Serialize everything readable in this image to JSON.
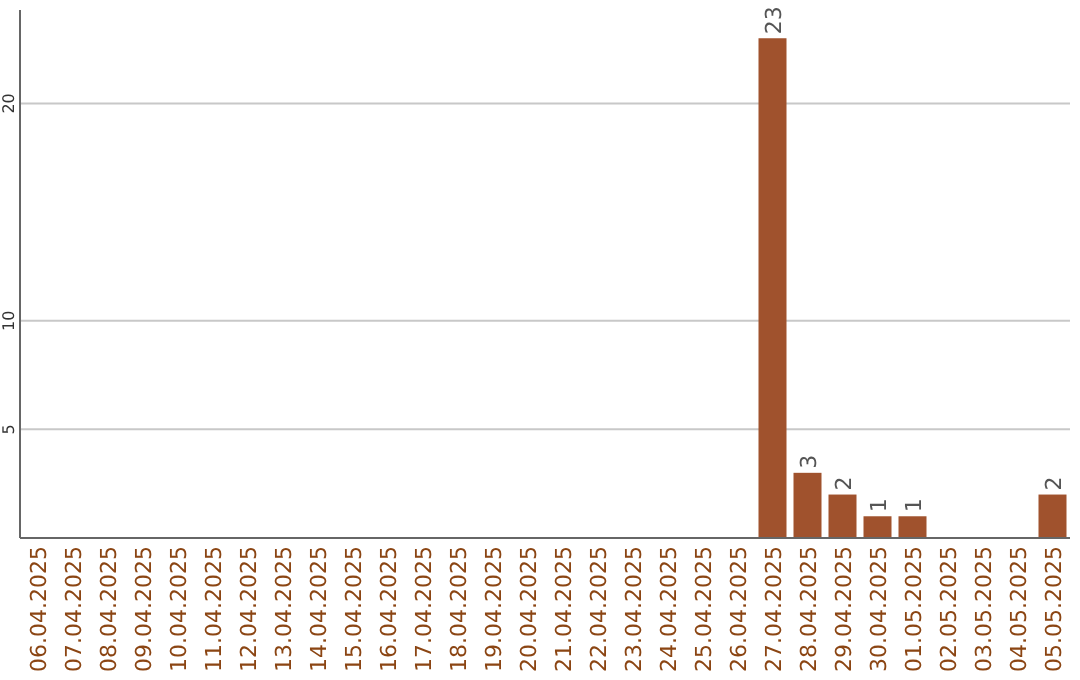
{
  "chart_data": {
    "type": "bar",
    "categories": [
      "06.04.2025",
      "07.04.2025",
      "08.04.2025",
      "09.04.2025",
      "10.04.2025",
      "11.04.2025",
      "12.04.2025",
      "13.04.2025",
      "14.04.2025",
      "15.04.2025",
      "16.04.2025",
      "17.04.2025",
      "18.04.2025",
      "19.04.2025",
      "20.04.2025",
      "21.04.2025",
      "22.04.2025",
      "23.04.2025",
      "24.04.2025",
      "25.04.2025",
      "26.04.2025",
      "27.04.2025",
      "28.04.2025",
      "29.04.2025",
      "30.04.2025",
      "01.05.2025",
      "02.05.2025",
      "03.05.2025",
      "04.05.2025",
      "05.05.2025"
    ],
    "values": [
      0,
      0,
      0,
      0,
      0,
      0,
      0,
      0,
      0,
      0,
      0,
      0,
      0,
      0,
      0,
      0,
      0,
      0,
      0,
      0,
      0,
      23,
      3,
      2,
      1,
      1,
      0,
      0,
      0,
      2
    ],
    "value_labels": [
      null,
      null,
      null,
      null,
      null,
      null,
      null,
      null,
      null,
      null,
      null,
      null,
      null,
      null,
      null,
      null,
      null,
      null,
      null,
      null,
      null,
      "23",
      "3",
      "2",
      "1",
      "1",
      null,
      null,
      null,
      "2"
    ],
    "color": "#a0522d",
    "ylim": [
      0,
      24.3
    ],
    "yticks": [
      5,
      10,
      20
    ],
    "grid": "y"
  }
}
